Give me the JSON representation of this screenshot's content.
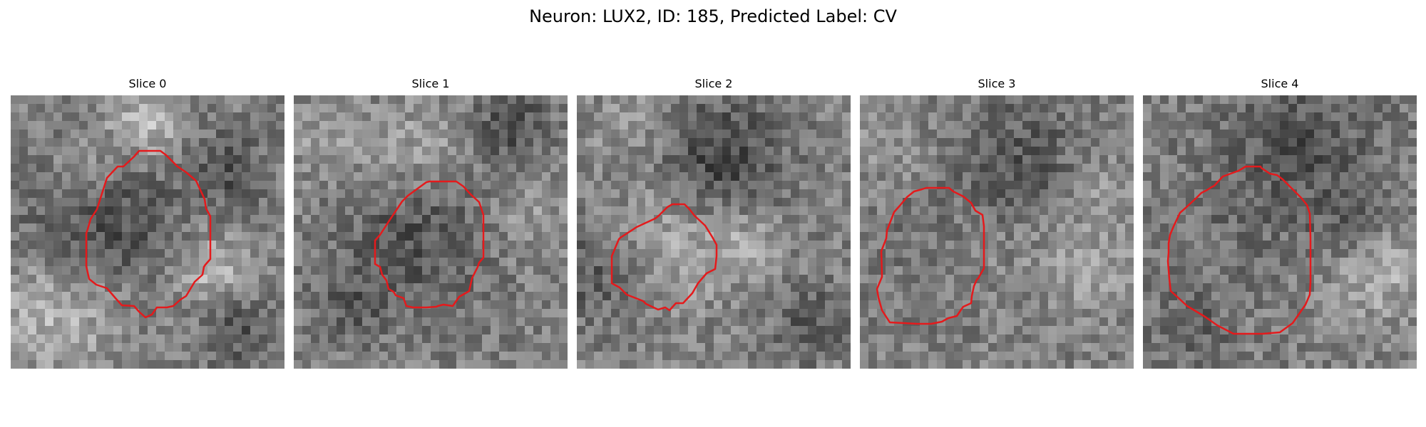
{
  "figure": {
    "title": "Neuron: LUX2, ID: 185, Predicted Label: CV"
  },
  "panels": [
    {
      "title": "Slice 0",
      "seed": 11,
      "blobs": [
        [
          10,
          14,
          6,
          -55
        ],
        [
          23,
          20,
          3,
          55
        ],
        [
          15,
          3,
          3,
          65
        ],
        [
          5,
          25,
          5,
          55
        ],
        [
          8,
          9,
          3,
          45
        ],
        [
          25,
          8,
          3,
          -50
        ],
        [
          26,
          27,
          3,
          -45
        ]
      ]
    },
    {
      "title": "Slice 1",
      "seed": 23,
      "blobs": [
        [
          14,
          16,
          6,
          -45
        ],
        [
          25,
          3,
          3,
          -50
        ],
        [
          4,
          5,
          3,
          35
        ],
        [
          14,
          6,
          4,
          40
        ],
        [
          27,
          14,
          3,
          30
        ],
        [
          6,
          24,
          3,
          -35
        ]
      ]
    },
    {
      "title": "Slice 2",
      "seed": 37,
      "blobs": [
        [
          16,
          7,
          5,
          -60
        ],
        [
          10,
          17,
          5,
          45
        ],
        [
          19,
          17,
          3,
          40
        ],
        [
          2,
          20,
          4,
          -45
        ],
        [
          27,
          26,
          3,
          -40
        ],
        [
          6,
          3,
          3,
          30
        ]
      ]
    },
    {
      "title": "Slice 3",
      "seed": 41,
      "blobs": [
        [
          18,
          7,
          5,
          -40
        ],
        [
          9,
          16,
          6,
          -15
        ],
        [
          13,
          17,
          3,
          20
        ],
        [
          25,
          19,
          4,
          35
        ],
        [
          3,
          6,
          3,
          25
        ],
        [
          28,
          10,
          3,
          20
        ]
      ]
    },
    {
      "title": "Slice 4",
      "seed": 53,
      "blobs": [
        [
          18,
          5,
          6,
          -45
        ],
        [
          9,
          15,
          6,
          -15
        ],
        [
          24,
          15,
          3,
          -35
        ],
        [
          27,
          20,
          4,
          50
        ],
        [
          5,
          27,
          3,
          -35
        ]
      ]
    }
  ],
  "outline_color": "#e41a1c"
}
